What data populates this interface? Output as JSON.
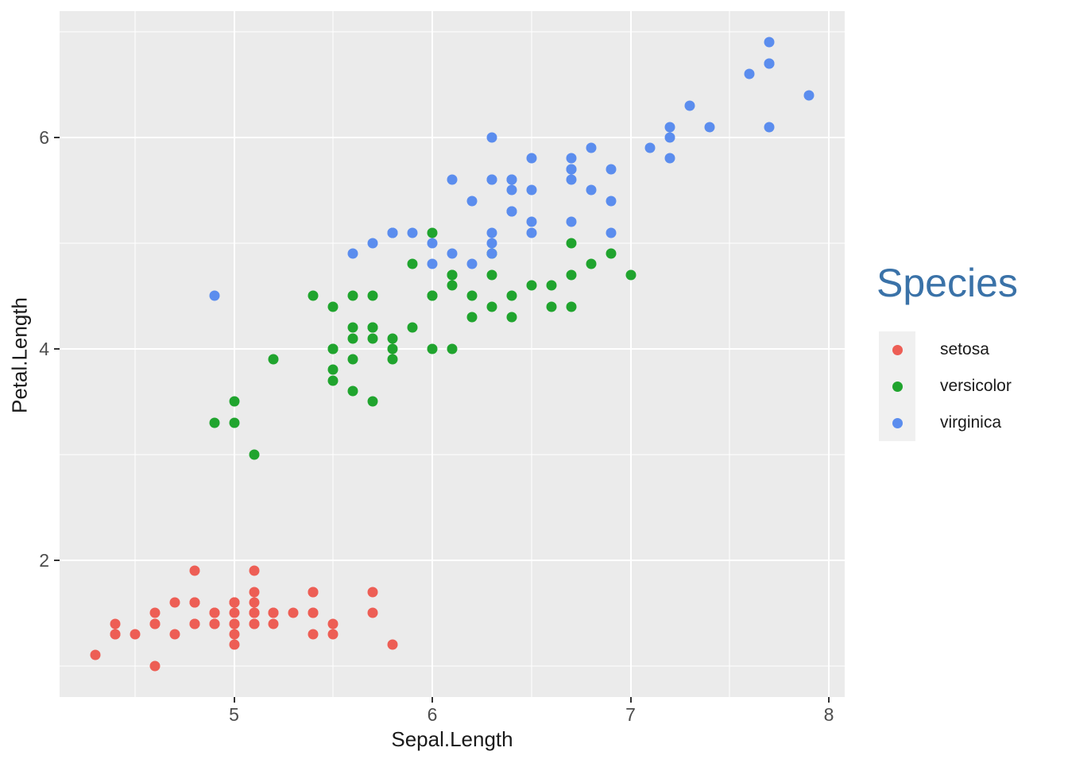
{
  "chart_data": {
    "type": "scatter",
    "title": "",
    "xlabel": "Sepal.Length",
    "ylabel": "Petal.Length",
    "legend_title": "Species",
    "legend_position": "right",
    "grid": true,
    "panel_bg": "#EBEBEB",
    "grid_color": "#FFFFFF",
    "tick_color": "#333333",
    "tick_label_color": "#4D4D4D",
    "axis_title_color": "#1A1A1A",
    "legend_title_color": "#3A72A8",
    "legend_key_bg": "#F0F0F0",
    "xlim": [
      4.12,
      8.08
    ],
    "ylim": [
      0.705,
      7.195
    ],
    "x_major_ticks": [
      5,
      6,
      7,
      8
    ],
    "x_minor_ticks": [
      4.5,
      5.5,
      6.5,
      7.5
    ],
    "y_major_ticks": [
      2,
      4,
      6
    ],
    "y_minor_ticks": [
      1,
      3,
      5,
      7
    ],
    "point_size": 13,
    "series": [
      {
        "name": "setosa",
        "color": "#ED5E55",
        "x": [
          5.1,
          4.9,
          4.7,
          4.6,
          5.0,
          5.4,
          4.6,
          5.0,
          4.4,
          4.9,
          5.4,
          4.8,
          4.8,
          4.3,
          5.8,
          5.7,
          5.4,
          5.1,
          5.7,
          5.1,
          5.4,
          5.1,
          4.6,
          5.1,
          4.8,
          5.0,
          5.0,
          5.2,
          5.2,
          4.7,
          4.8,
          5.4,
          5.2,
          5.5,
          4.9,
          5.0,
          5.5,
          4.9,
          4.4,
          5.1,
          5.0,
          4.5,
          4.4,
          5.0,
          5.1,
          4.8,
          5.1,
          4.6,
          5.3,
          5.0
        ],
        "y": [
          1.4,
          1.4,
          1.3,
          1.5,
          1.4,
          1.7,
          1.4,
          1.5,
          1.4,
          1.5,
          1.5,
          1.6,
          1.4,
          1.1,
          1.2,
          1.5,
          1.3,
          1.4,
          1.7,
          1.5,
          1.7,
          1.5,
          1.0,
          1.7,
          1.9,
          1.6,
          1.6,
          1.5,
          1.4,
          1.6,
          1.6,
          1.5,
          1.5,
          1.4,
          1.5,
          1.2,
          1.3,
          1.4,
          1.3,
          1.5,
          1.3,
          1.3,
          1.3,
          1.6,
          1.9,
          1.4,
          1.6,
          1.4,
          1.5,
          1.4
        ]
      },
      {
        "name": "versicolor",
        "color": "#20A42E",
        "x": [
          7.0,
          6.4,
          6.9,
          5.5,
          6.5,
          5.7,
          6.3,
          4.9,
          6.6,
          5.2,
          5.0,
          5.9,
          6.0,
          6.1,
          5.6,
          6.7,
          5.6,
          5.8,
          6.2,
          5.6,
          5.9,
          6.1,
          6.3,
          6.1,
          6.4,
          6.6,
          6.8,
          6.7,
          6.0,
          5.7,
          5.5,
          5.5,
          5.8,
          6.0,
          5.4,
          6.0,
          6.7,
          6.3,
          5.6,
          5.5,
          5.5,
          6.1,
          5.8,
          5.0,
          5.6,
          5.7,
          5.7,
          6.2,
          5.1,
          5.7
        ],
        "y": [
          4.7,
          4.5,
          4.9,
          4.0,
          4.6,
          4.5,
          4.7,
          3.3,
          4.6,
          3.9,
          3.5,
          4.2,
          4.0,
          4.7,
          3.6,
          4.4,
          4.5,
          4.1,
          4.5,
          3.9,
          4.8,
          4.0,
          4.9,
          4.7,
          4.3,
          4.4,
          4.8,
          5.0,
          4.5,
          3.5,
          3.8,
          3.7,
          3.9,
          5.1,
          4.5,
          4.5,
          4.7,
          4.4,
          4.1,
          4.0,
          4.4,
          4.6,
          4.0,
          3.3,
          4.2,
          4.2,
          4.2,
          4.3,
          3.0,
          4.1
        ]
      },
      {
        "name": "virginica",
        "color": "#5B8DEE",
        "x": [
          6.3,
          5.8,
          7.1,
          6.3,
          6.5,
          7.6,
          4.9,
          7.3,
          6.7,
          7.2,
          6.5,
          6.4,
          6.8,
          5.7,
          5.8,
          6.4,
          6.5,
          7.7,
          7.7,
          6.0,
          6.9,
          5.6,
          7.7,
          6.3,
          6.7,
          7.2,
          6.2,
          6.1,
          6.4,
          7.2,
          7.4,
          7.9,
          6.4,
          6.3,
          6.1,
          7.7,
          6.3,
          6.4,
          6.0,
          6.9,
          6.7,
          6.9,
          5.8,
          6.8,
          6.7,
          6.7,
          6.3,
          6.5,
          6.2,
          5.9
        ],
        "y": [
          6.0,
          5.1,
          5.9,
          5.6,
          5.8,
          6.6,
          4.5,
          6.3,
          5.8,
          6.1,
          5.1,
          5.3,
          5.5,
          5.0,
          5.1,
          5.3,
          5.5,
          6.7,
          6.9,
          5.0,
          5.7,
          4.9,
          6.7,
          4.9,
          5.7,
          6.0,
          4.8,
          4.9,
          5.6,
          5.8,
          6.1,
          6.4,
          5.6,
          5.1,
          5.6,
          6.1,
          5.6,
          5.5,
          4.8,
          5.4,
          5.6,
          5.1,
          5.1,
          5.9,
          5.7,
          5.2,
          5.0,
          5.2,
          5.4,
          5.1
        ]
      }
    ]
  }
}
